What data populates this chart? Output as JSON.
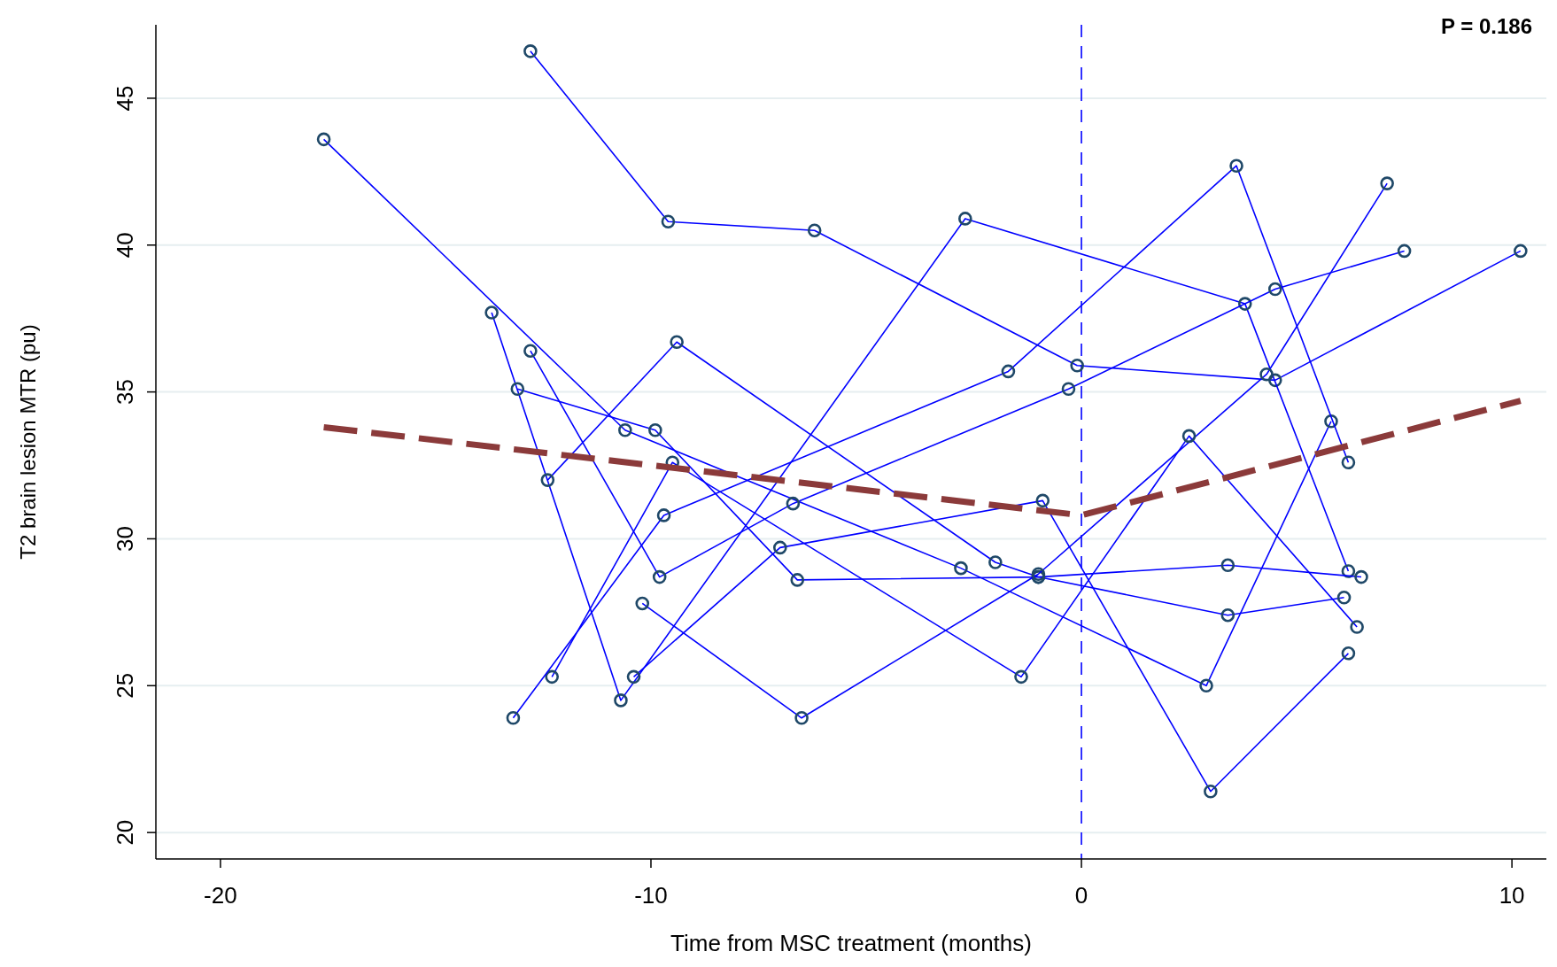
{
  "chart_data": {
    "type": "line",
    "xlabel": "Time from MSC treatment (months)",
    "ylabel": "T2 brain lesion MTR (pu)",
    "xlim": [
      -21.5,
      10.8
    ],
    "ylim": [
      19.1,
      47.5
    ],
    "xticks": [
      -20,
      -10,
      0,
      10
    ],
    "yticks": [
      20,
      25,
      30,
      35,
      40,
      45
    ],
    "grid": "y",
    "marker": "circle",
    "line_style": "solid",
    "ref_lines": [
      {
        "axis": "x",
        "value": 0,
        "color": "#0000ff",
        "line_style": "dashed"
      }
    ],
    "annotations": [
      "P = 0.186"
    ],
    "series": [
      {
        "color": "#0000ff",
        "x": [
          -17.6,
          -10.6,
          -2.8,
          2.9,
          5.8
        ],
        "values": [
          43.6,
          33.7,
          29.0,
          25.0,
          34.0
        ]
      },
      {
        "color": "#0000ff",
        "x": [
          -12.8,
          -9.6,
          -6.2,
          -0.1,
          4.5,
          10.2
        ],
        "values": [
          46.6,
          40.8,
          40.5,
          35.9,
          35.4,
          39.8
        ]
      },
      {
        "color": "#0000ff",
        "x": [
          -13.7,
          -10.7,
          -2.7,
          3.8,
          6.2
        ],
        "values": [
          37.7,
          24.5,
          40.9,
          38.0,
          28.9
        ]
      },
      {
        "color": "#0000ff",
        "x": [
          -12.8,
          -9.8,
          -6.7,
          -0.3,
          4.5,
          7.5
        ],
        "values": [
          36.4,
          28.7,
          31.2,
          35.1,
          38.5,
          39.8
        ]
      },
      {
        "color": "#0000ff",
        "x": [
          -13.1,
          -9.9,
          -6.6,
          -1.0,
          3.4,
          6.5
        ],
        "values": [
          35.1,
          33.7,
          28.6,
          28.7,
          29.1,
          28.7
        ]
      },
      {
        "color": "#0000ff",
        "x": [
          -12.4,
          -9.4,
          -2.0,
          -1.0,
          3.4,
          6.1
        ],
        "values": [
          32.0,
          36.7,
          29.2,
          28.7,
          27.4,
          28.0
        ]
      },
      {
        "color": "#0000ff",
        "x": [
          -10.2,
          -6.5,
          -1.0,
          4.3,
          7.1
        ],
        "values": [
          27.8,
          23.9,
          28.8,
          35.6,
          42.1
        ]
      },
      {
        "color": "#0000ff",
        "x": [
          -10.4,
          -7.0,
          -0.9,
          3.0,
          6.2
        ],
        "values": [
          25.3,
          29.7,
          31.3,
          21.4,
          26.1
        ]
      },
      {
        "color": "#0000ff",
        "x": [
          -12.3,
          -9.5,
          -1.4,
          2.5,
          6.4
        ],
        "values": [
          25.3,
          32.6,
          25.3,
          33.5,
          27.0
        ]
      },
      {
        "color": "#0000ff",
        "x": [
          -13.2,
          -9.7,
          -1.7,
          3.6,
          6.2
        ],
        "values": [
          23.9,
          30.8,
          35.7,
          42.7,
          32.6
        ]
      },
      {
        "color": "#8b3a3a",
        "x": [
          -17.6,
          0,
          10.2
        ],
        "values": [
          33.8,
          30.8,
          34.7
        ],
        "marker": "none",
        "line_style": "dashed"
      }
    ]
  }
}
